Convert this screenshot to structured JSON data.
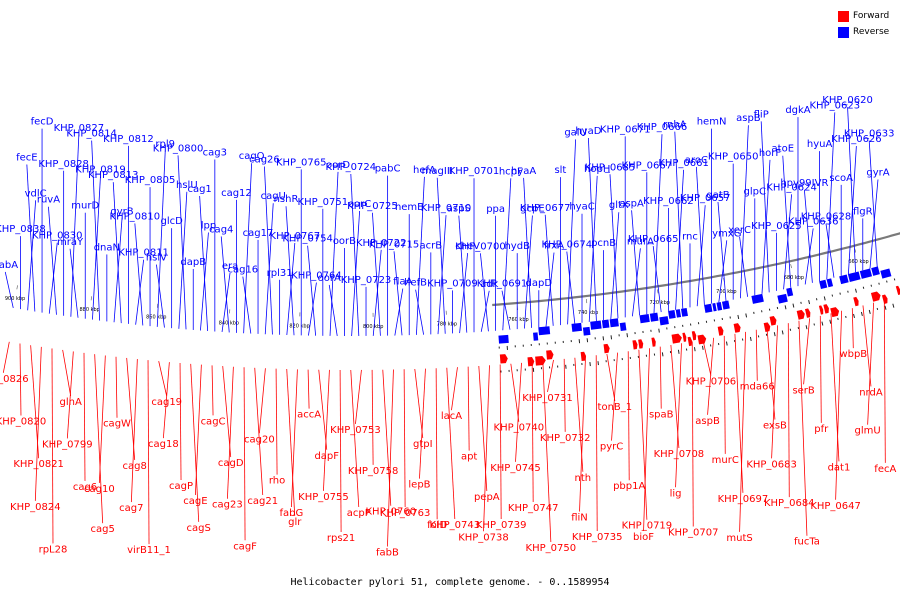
{
  "caption": "Helicobacter pylori 51, complete genome. - 0..1589954",
  "legend": [
    {
      "label": "Forward",
      "color": "#ff0000"
    },
    {
      "label": "Reverse",
      "color": "#0000ff"
    }
  ],
  "ticks": [
    "900 kbp",
    "880 kbp",
    "860 kbp",
    "840 kbp",
    "820 kbp",
    "800 kbp",
    "780 kbp",
    "760 kbp",
    "740 kbp",
    "720 kbp",
    "700 kbp",
    "680 kbp",
    "660 kbp"
  ],
  "reverse_labels": [
    "babA",
    "KHP_0838",
    "vdlC",
    "fecE",
    "fecD",
    "KHP_0830",
    "ruvA",
    "KHP_0828",
    "KHP_0827",
    "mraY",
    "murD",
    "KHP_0819",
    "KHP_0814",
    "dnaN",
    "gyrB",
    "KHP_0813",
    "KHP_0812",
    "KHP_0811",
    "KHP_0810",
    "KHP_0805",
    "rpl9",
    "hslV",
    "glcD",
    "hslU",
    "KHP_0800",
    "dapB",
    "lpp",
    "cag1",
    "cag3",
    "era",
    "cag4",
    "cag12",
    "cagQ",
    "cag16",
    "cag17",
    "cagU",
    "cag26",
    "rpl31",
    "KHP_0767",
    "nshR",
    "KHP_0765",
    "KHP_0764",
    "KHP_0754",
    "KHP_0751",
    "oorD",
    "oorA",
    "oorB",
    "oorC",
    "KHP_0724",
    "KHP_0723",
    "KHP_0722",
    "KHP_0725",
    "pabC",
    "flaA",
    "KHP_0715",
    "hemE",
    "hefA",
    "hefB",
    "acrB",
    "KHP_0710",
    "magIII",
    "KHP_0709",
    "cheV",
    "aspS",
    "KHP_0701",
    "adk",
    "KHP_0700",
    "ppa",
    "hcpF",
    "KHP_0691",
    "hydB",
    "gcpE",
    "hyaA",
    "dapD",
    "frxA",
    "KHP_0677",
    "slt",
    "galU",
    "KHP_0674",
    "hyaC",
    "hopH",
    "hyaD",
    "pcnB",
    "gltX",
    "KHP_0685",
    "KHP_0671",
    "murA",
    "aspA",
    "KHP_0667",
    "KHP_0666",
    "KHP_0665",
    "KHP_0662",
    "KHP_0661",
    "rnhA",
    "rnc",
    "KHP_0657",
    "aroC",
    "hemN",
    "ymxG",
    "gatB",
    "KHP_0650",
    "aspB",
    "xerC",
    "glpC",
    "horF",
    "fliP",
    "KHP_0625",
    "KHP_0624",
    "atoE",
    "dgkA",
    "KHP_0636",
    "hpy99IVR",
    "hyuA",
    "KHP_0623",
    "KHP_0628",
    "scoA",
    "KHP_0626",
    "KHP_0620",
    "flgR",
    "gyrA",
    "KHP_0633"
  ],
  "forward_labels": [
    "KHP_0826",
    "KHP_0820",
    "KHP_0821",
    "KHP_0824",
    "rpL28",
    "glnA",
    "KHP_0799",
    "cag6",
    "cag5",
    "cag10",
    "cagW",
    "cag8",
    "cag7",
    "virB11_1",
    "cag19",
    "cag18",
    "cagP",
    "cagS",
    "cagE",
    "cagC",
    "cagD",
    "cag23",
    "cagF",
    "cag21",
    "cag20",
    "rho",
    "glr",
    "fabG",
    "accA",
    "dapF",
    "KHP_0755",
    "rps21",
    "acpP",
    "KHP_0753",
    "KHP_0758",
    "KHP_0760",
    "fabB",
    "KHP_0763",
    "gtpI",
    "lepB",
    "folD",
    "KHP_0743",
    "lacA",
    "apt",
    "pepA",
    "KHP_0738",
    "KHP_0739",
    "KHP_0740",
    "KHP_0745",
    "KHP_0747",
    "KHP_0750",
    "KHP_0731",
    "KHP_0732",
    "nth",
    "fliN",
    "KHP_0735",
    "tonB_1",
    "pyrC",
    "pbp1A",
    "KHP_0719",
    "bioF",
    "spaB",
    "KHP_0708",
    "lig",
    "KHP_0707",
    "KHP_0706",
    "aspB",
    "murC",
    "KHP_0697",
    "mutS",
    "mda66",
    "exsB",
    "KHP_0683",
    "KHP_0684",
    "fucTa",
    "serB",
    "pfr",
    "dat1",
    "KHP_0647",
    "wbpB",
    "nrdA",
    "glmU",
    "fecA"
  ]
}
